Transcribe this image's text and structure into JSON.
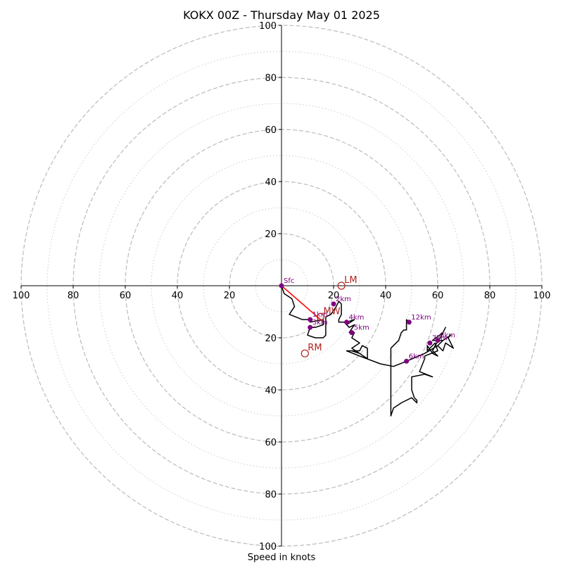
{
  "chart_data": {
    "type": "hodograph",
    "title": "KOKX 00Z - Thursday May 01 2025",
    "xlabel": "Speed in knots",
    "ylabel": "",
    "xlim": [
      -100,
      100
    ],
    "ylim": [
      -100,
      100
    ],
    "major_rings": [
      20,
      40,
      60,
      80,
      100
    ],
    "minor_rings": [
      10,
      30,
      50,
      70,
      90
    ],
    "x_ticks": [
      -100,
      -80,
      -60,
      -40,
      -20,
      0,
      20,
      40,
      60,
      80,
      100
    ],
    "x_tick_labels": [
      "100",
      "80",
      "60",
      "40",
      "20",
      "",
      "20",
      "40",
      "60",
      "80",
      "100"
    ],
    "y_ticks": [
      -100,
      -80,
      -60,
      -40,
      -20,
      0,
      20,
      40,
      60,
      80,
      100
    ],
    "y_tick_labels": [
      "100",
      "80",
      "60",
      "40",
      "20",
      "",
      "20",
      "40",
      "60",
      "80",
      "100"
    ],
    "grid": true,
    "trace": {
      "color": "#000000",
      "points": [
        [
          0,
          0
        ],
        [
          1,
          -3
        ],
        [
          4,
          -5
        ],
        [
          5,
          -8
        ],
        [
          3,
          -11
        ],
        [
          8,
          -13
        ],
        [
          11,
          -13
        ],
        [
          11,
          -14
        ],
        [
          16,
          -13
        ],
        [
          16,
          -15
        ],
        [
          13,
          -16
        ],
        [
          11,
          -16
        ],
        [
          10,
          -19
        ],
        [
          13,
          -20
        ],
        [
          16,
          -20
        ],
        [
          17,
          -19
        ],
        [
          17,
          -13
        ],
        [
          17,
          -12
        ],
        [
          19,
          -11
        ],
        [
          21,
          -8
        ],
        [
          22,
          -6
        ],
        [
          23,
          -7
        ],
        [
          23,
          -11
        ],
        [
          22,
          -13
        ],
        [
          22,
          -14
        ],
        [
          25,
          -14
        ],
        [
          28,
          -13
        ],
        [
          25,
          -15
        ],
        [
          26,
          -16
        ],
        [
          28,
          -15
        ],
        [
          26,
          -18
        ],
        [
          28,
          -18
        ],
        [
          27,
          -20
        ],
        [
          30,
          -22
        ],
        [
          27,
          -24
        ],
        [
          30,
          -26
        ],
        [
          27,
          -25
        ],
        [
          30,
          -26
        ],
        [
          33,
          -28
        ],
        [
          30,
          -27
        ],
        [
          33,
          -28
        ],
        [
          33,
          -24
        ],
        [
          31,
          -23
        ],
        [
          30,
          -25
        ],
        [
          25,
          -25
        ],
        [
          30,
          -27
        ],
        [
          38,
          -30
        ],
        [
          43,
          -31
        ],
        [
          48,
          -29
        ],
        [
          55,
          -26
        ],
        [
          60,
          -23
        ],
        [
          62,
          -25
        ],
        [
          63,
          -22
        ],
        [
          66,
          -24
        ],
        [
          64,
          -20
        ],
        [
          65,
          -19
        ],
        [
          62,
          -21
        ],
        [
          60,
          -23
        ],
        [
          62,
          -21
        ],
        [
          58,
          -21
        ],
        [
          62,
          -18
        ],
        [
          63,
          -16
        ],
        [
          61,
          -20
        ],
        [
          59,
          -23
        ],
        [
          58,
          -25
        ],
        [
          60,
          -27
        ],
        [
          58,
          -26
        ],
        [
          56,
          -23
        ],
        [
          56,
          -25
        ],
        [
          59,
          -22
        ],
        [
          60,
          -25
        ],
        [
          55,
          -27
        ],
        [
          55,
          -28
        ],
        [
          53,
          -33
        ],
        [
          58,
          -35
        ],
        [
          55,
          -34
        ],
        [
          50,
          -35
        ],
        [
          50,
          -38
        ],
        [
          50,
          -40
        ],
        [
          51,
          -43
        ],
        [
          52,
          -44
        ],
        [
          52,
          -45
        ],
        [
          51,
          -44
        ],
        [
          50,
          -43
        ],
        [
          46,
          -45
        ],
        [
          43,
          -47
        ],
        [
          42,
          -50
        ],
        [
          42,
          -46
        ],
        [
          42,
          -43
        ],
        [
          42,
          -39
        ],
        [
          42,
          -36
        ],
        [
          42,
          -32
        ],
        [
          42,
          -28
        ],
        [
          42,
          -24
        ],
        [
          45,
          -21
        ],
        [
          46,
          -18
        ],
        [
          47,
          -17
        ],
        [
          48,
          -17
        ],
        [
          48,
          -15
        ],
        [
          48,
          -13
        ],
        [
          49,
          -14
        ]
      ]
    },
    "heights": [
      {
        "label": "Sfc",
        "u": 0,
        "v": 0
      },
      {
        "label": "1km",
        "u": 11,
        "v": -13
      },
      {
        "label": "2km",
        "u": 20,
        "v": -7
      },
      {
        "label": "3km",
        "u": 11,
        "v": -16
      },
      {
        "label": "4km",
        "u": 25,
        "v": -14
      },
      {
        "label": "5km",
        "u": 27,
        "v": -18
      },
      {
        "label": "6km",
        "u": 48,
        "v": -29
      },
      {
        "label": "7km",
        "u": 57,
        "v": -22
      },
      {
        "label": "8km",
        "u": 60,
        "v": -21
      },
      {
        "label": "12km",
        "u": 49,
        "v": -14
      }
    ],
    "shear_vector": {
      "from": [
        0,
        0
      ],
      "to": [
        15,
        -13
      ],
      "color": "#ff0000"
    },
    "motions": [
      {
        "label": "LM",
        "u": 23,
        "v": 0
      },
      {
        "label": "MW",
        "u": 15,
        "v": -12
      },
      {
        "label": "RM",
        "u": 9,
        "v": -26
      }
    ],
    "colors": {
      "trace": "#000000",
      "height_marker": "#800080",
      "motion": "#b22222",
      "shear": "#ff0000",
      "grid": "#bbbbbb",
      "axis": "#000000"
    }
  }
}
